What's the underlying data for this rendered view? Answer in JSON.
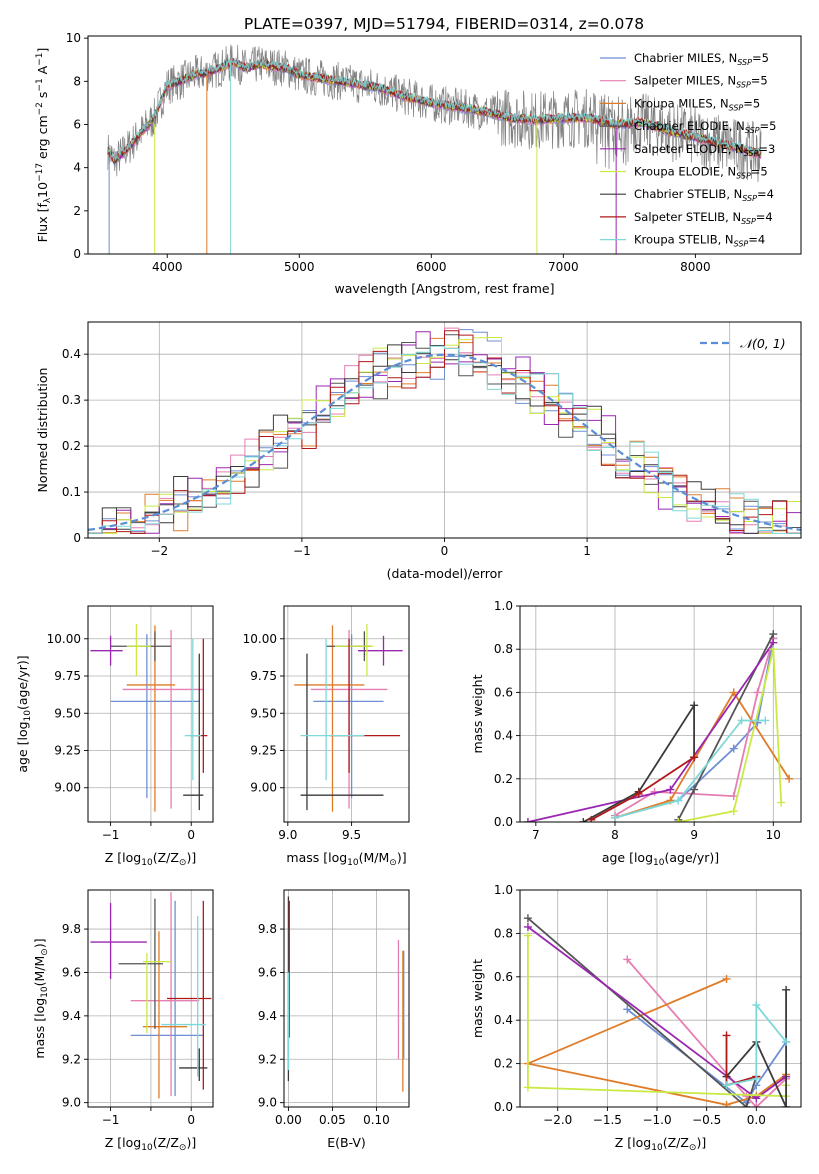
{
  "title": "PLATE=0397, MJD=51794, FIBERID=0314, z=0.078",
  "colors": [
    "#6e8fd4",
    "#e57fb3",
    "#e07b28",
    "#555555",
    "#9a27b0",
    "#c9ea45",
    "#3a3a3a",
    "#b01818",
    "#7fd8d8"
  ],
  "models": [
    {
      "label": "Chabrier MILES, N",
      "sub": "SSP",
      "tail": "=5"
    },
    {
      "label": "Salpeter MILES, N",
      "sub": "SSP",
      "tail": "=5"
    },
    {
      "label": "Kroupa MILES, N",
      "sub": "SSP",
      "tail": "=5"
    },
    {
      "label": "Chabrier ELODIE, N",
      "sub": "SSP",
      "tail": "=5"
    },
    {
      "label": "Salpeter ELODIE, N",
      "sub": "SSP",
      "tail": "=3"
    },
    {
      "label": "Kroupa ELODIE, N",
      "sub": "SSP",
      "tail": "=5"
    },
    {
      "label": "Chabrier STELIB, N",
      "sub": "SSP",
      "tail": "=4"
    },
    {
      "label": "Salpeter STELIB, N",
      "sub": "SSP",
      "tail": "=4"
    },
    {
      "label": "Kroupa STELIB, N",
      "sub": "SSP",
      "tail": "=4"
    }
  ],
  "chart_data": [
    {
      "type": "line",
      "id": "spectrum",
      "xlabel": "wavelength [Angstrom, rest frame]",
      "ylabel_parts": [
        "Flux [f",
        "λ",
        "10",
        "−17",
        " erg cm",
        "−2",
        " s",
        "−1",
        " A",
        "−1",
        "]"
      ],
      "xlim": [
        3400,
        8800
      ],
      "ylim": [
        0,
        10.1
      ],
      "xticks": [
        4000,
        5000,
        6000,
        7000,
        8000
      ],
      "yticks": [
        0,
        2,
        4,
        6,
        8,
        10
      ],
      "continuum": {
        "x": [
          3550,
          3600,
          3700,
          3800,
          3900,
          4000,
          4100,
          4200,
          4300,
          4400,
          4500,
          4600,
          4700,
          4800,
          4900,
          5000,
          5200,
          5400,
          5600,
          5800,
          6000,
          6200,
          6400,
          6600,
          6800,
          7000,
          7200,
          7400,
          7600,
          7800,
          8000,
          8200,
          8400,
          8500
        ],
        "y": [
          4.8,
          4.3,
          4.9,
          5.6,
          6.3,
          7.8,
          8.0,
          8.3,
          8.4,
          8.6,
          8.9,
          8.6,
          8.8,
          8.7,
          8.6,
          8.3,
          8.1,
          7.9,
          7.7,
          7.3,
          7.0,
          6.8,
          6.6,
          6.3,
          6.2,
          6.3,
          6.3,
          6.0,
          6.1,
          5.7,
          5.4,
          5.1,
          4.8,
          4.6
        ]
      },
      "legend": "top-right"
    },
    {
      "type": "histogram",
      "id": "residuals",
      "xlabel": "(data-model)/error",
      "ylabel": "Normed distribution",
      "xlim": [
        -2.5,
        2.5
      ],
      "ylim": [
        0,
        0.47
      ],
      "xticks": [
        -2,
        -1,
        0,
        1,
        2
      ],
      "yticks": [
        0,
        0.1,
        0.2,
        0.3,
        0.4
      ],
      "bin_width": 0.1,
      "gaussian_label": "𝒩(0, 1)",
      "legend": "top-right",
      "grid": true
    },
    {
      "type": "errorbar",
      "id": "age-vs-Z",
      "xlabel_parts": [
        "Z [log",
        "10",
        "(Z/Z",
        "⊙",
        ")]"
      ],
      "ylabel_parts": [
        "age  [log",
        "10",
        "(age/yr)]"
      ],
      "xlim": [
        -1.28,
        0.27
      ],
      "ylim": [
        8.77,
        10.22
      ],
      "xticks": [
        -1,
        -0.5,
        0
      ],
      "xticklabels": [
        "−1",
        "",
        "0"
      ],
      "yticks": [
        9.0,
        9.25,
        9.5,
        9.75,
        10.0
      ],
      "yticklabels": [
        "9.00",
        "9.25",
        "9.50",
        "9.75",
        "10.00"
      ],
      "points": [
        {
          "x": -0.55,
          "xerr": [
            0.45,
            0.65
          ],
          "y": 9.58,
          "yerr": [
            0.65,
            0.45
          ],
          "c": 0
        },
        {
          "x": -0.25,
          "xerr": [
            0.6,
            0.4
          ],
          "y": 9.66,
          "yerr": [
            0.8,
            0.4
          ],
          "c": 1
        },
        {
          "x": -0.45,
          "xerr": [
            0.35,
            0.25
          ],
          "y": 9.69,
          "yerr": [
            0.85,
            0.4
          ],
          "c": 2
        },
        {
          "x": -0.45,
          "xerr": [
            0.55,
            0.2
          ],
          "y": 9.95,
          "yerr": [
            0.1,
            0.1
          ],
          "c": 3
        },
        {
          "x": -1.0,
          "xerr": [
            0.25,
            0.15
          ],
          "y": 9.92,
          "yerr": [
            0.1,
            0.1
          ],
          "c": 4
        },
        {
          "x": -0.68,
          "xerr": [
            0.12,
            0.18
          ],
          "y": 9.95,
          "yerr": [
            0.2,
            0.15
          ],
          "c": 5
        },
        {
          "x": 0.1,
          "xerr": [
            0.2,
            0.05
          ],
          "y": 8.95,
          "yerr": [
            0.1,
            0.95
          ],
          "c": 6
        },
        {
          "x": 0.15,
          "xerr": [
            0.15,
            0.05
          ],
          "y": 9.35,
          "yerr": [
            0.25,
            0.65
          ],
          "c": 7
        },
        {
          "x": 0.02,
          "xerr": [
            0.1,
            0.1
          ],
          "y": 9.35,
          "yerr": [
            0.3,
            0.65
          ],
          "c": 8
        }
      ]
    },
    {
      "type": "errorbar",
      "id": "age-vs-mass",
      "xlabel_parts": [
        "mass [log",
        "10",
        "(M/M",
        "⊙",
        ")]"
      ],
      "xlim": [
        8.97,
        9.95
      ],
      "ylim": [
        8.77,
        10.22
      ],
      "xticks": [
        9.0,
        9.5
      ],
      "xticklabels": [
        "9.0",
        "9.5"
      ],
      "yticks": [
        9.0,
        9.25,
        9.5,
        9.75,
        10.0
      ],
      "yticklabels": [
        "9.00",
        "9.25",
        "9.50",
        "9.75",
        "10.00"
      ],
      "points": [
        {
          "x": 9.5,
          "xerr": [
            0.3,
            0.25
          ],
          "y": 9.58,
          "yerr": [
            0.65,
            0.45
          ],
          "c": 0
        },
        {
          "x": 9.48,
          "xerr": [
            0.3,
            0.3
          ],
          "y": 9.66,
          "yerr": [
            0.8,
            0.4
          ],
          "c": 1
        },
        {
          "x": 9.35,
          "xerr": [
            0.3,
            0.25
          ],
          "y": 9.69,
          "yerr": [
            0.85,
            0.4
          ],
          "c": 2
        },
        {
          "x": 9.6,
          "xerr": [
            0.3,
            0.05
          ],
          "y": 9.95,
          "yerr": [
            0.1,
            0.1
          ],
          "c": 3
        },
        {
          "x": 9.75,
          "xerr": [
            0.2,
            0.15
          ],
          "y": 9.92,
          "yerr": [
            0.1,
            0.1
          ],
          "c": 4
        },
        {
          "x": 9.62,
          "xerr": [
            0.25,
            0.05
          ],
          "y": 9.95,
          "yerr": [
            0.2,
            0.15
          ],
          "c": 5
        },
        {
          "x": 9.15,
          "xerr": [
            0.05,
            0.6
          ],
          "y": 8.95,
          "yerr": [
            0.1,
            0.95
          ],
          "c": 6
        },
        {
          "x": 9.48,
          "xerr": [
            0.15,
            0.4
          ],
          "y": 9.35,
          "yerr": [
            0.25,
            0.65
          ],
          "c": 7
        },
        {
          "x": 9.3,
          "xerr": [
            0.2,
            0.3
          ],
          "y": 9.35,
          "yerr": [
            0.3,
            0.65
          ],
          "c": 8
        }
      ]
    },
    {
      "type": "line",
      "id": "mass-weight-vs-age",
      "xlabel_parts": [
        "age  [log",
        "10",
        "(age/yr)]"
      ],
      "ylabel": "mass weight",
      "xlim": [
        6.8,
        10.35
      ],
      "ylim": [
        0,
        1.0
      ],
      "xticks": [
        7,
        8,
        9,
        10
      ],
      "yticks": [
        0,
        0.2,
        0.4,
        0.6,
        0.8,
        1.0
      ],
      "yticklabels": [
        "0.0",
        "0.2",
        "0.4",
        "0.6",
        "0.8",
        "1.0"
      ],
      "grid": true,
      "series": [
        {
          "c": 0,
          "x": [
            8.0,
            8.8,
            9.5,
            9.8,
            10.0
          ],
          "y": [
            0.02,
            0.1,
            0.34,
            0.46,
            0.85
          ]
        },
        {
          "c": 1,
          "x": [
            8.0,
            8.5,
            9.5,
            9.8,
            10.0
          ],
          "y": [
            0.03,
            0.14,
            0.12,
            0.6,
            0.85
          ]
        },
        {
          "c": 2,
          "x": [
            8.0,
            8.7,
            9.5,
            10.2
          ],
          "y": [
            0.02,
            0.1,
            0.6,
            0.2
          ]
        },
        {
          "c": 3,
          "x": [
            8.8,
            9.0,
            10.0
          ],
          "y": [
            0.01,
            0.15,
            0.87
          ]
        },
        {
          "c": 4,
          "x": [
            6.9,
            8.7,
            10.0
          ],
          "y": [
            0.0,
            0.15,
            0.83
          ]
        },
        {
          "c": 5,
          "x": [
            8.8,
            9.5,
            10.0,
            10.1
          ],
          "y": [
            0.0,
            0.05,
            0.8,
            0.09
          ]
        },
        {
          "c": 6,
          "x": [
            7.6,
            8.3,
            9.0,
            9.0
          ],
          "y": [
            0.0,
            0.14,
            0.54,
            0.3
          ]
        },
        {
          "c": 7,
          "x": [
            7.7,
            8.3,
            9.0
          ],
          "y": [
            0.01,
            0.13,
            0.3
          ]
        },
        {
          "c": 8,
          "x": [
            8.0,
            8.8,
            9.6,
            9.9
          ],
          "y": [
            0.02,
            0.1,
            0.47,
            0.47
          ]
        }
      ]
    },
    {
      "type": "errorbar",
      "id": "mass-vs-Z",
      "xlabel_parts": [
        "Z [log",
        "10",
        "(Z/Z",
        "⊙",
        ")]"
      ],
      "ylabel_parts": [
        "mass [log",
        "10",
        "(M/M",
        "⊙",
        ")]"
      ],
      "xlim": [
        -1.28,
        0.27
      ],
      "ylim": [
        8.98,
        9.98
      ],
      "xticks": [
        -1,
        -0.5,
        0
      ],
      "xticklabels": [
        "−1",
        "",
        "0"
      ],
      "yticks": [
        9.0,
        9.2,
        9.4,
        9.6,
        9.8
      ],
      "yticklabels": [
        "9.0",
        "9.2",
        "9.4",
        "9.6",
        "9.8"
      ],
      "points": [
        {
          "x": -0.2,
          "xerr": [
            0.55,
            0.35
          ],
          "y": 9.31,
          "yerr": [
            0.28,
            0.62
          ],
          "c": 0
        },
        {
          "x": -0.25,
          "xerr": [
            0.5,
            0.35
          ],
          "y": 9.47,
          "yerr": [
            0.44,
            0.5
          ],
          "c": 1
        },
        {
          "x": -0.4,
          "xerr": [
            0.2,
            0.35
          ],
          "y": 9.35,
          "yerr": [
            0.33,
            0.44
          ],
          "c": 2
        },
        {
          "x": -0.45,
          "xerr": [
            0.45,
            0.1
          ],
          "y": 9.64,
          "yerr": [
            0.3,
            0.3
          ],
          "c": 3
        },
        {
          "x": -1.0,
          "xerr": [
            0.25,
            0.45
          ],
          "y": 9.74,
          "yerr": [
            0.17,
            0.18
          ],
          "c": 4
        },
        {
          "x": -0.55,
          "xerr": [
            0.05,
            0.3
          ],
          "y": 9.65,
          "yerr": [
            0.33,
            0.04
          ],
          "c": 5
        },
        {
          "x": 0.1,
          "xerr": [
            0.25,
            0.1
          ],
          "y": 9.16,
          "yerr": [
            0.06,
            0.09
          ],
          "c": 6
        },
        {
          "x": 0.15,
          "xerr": [
            0.45,
            0.1
          ],
          "y": 9.48,
          "yerr": [
            0.42,
            0.45
          ],
          "c": 7
        },
        {
          "x": 0.08,
          "xerr": [
            0.45,
            0.1
          ],
          "y": 9.36,
          "yerr": [
            0.24,
            0.5
          ],
          "c": 8
        }
      ]
    },
    {
      "type": "errorbar",
      "id": "mass-vs-EBV",
      "xlabel": "E(B-V)",
      "xlim": [
        -0.005,
        0.137
      ],
      "ylim": [
        8.98,
        9.98
      ],
      "xticks": [
        0,
        0.05,
        0.1
      ],
      "xticklabels": [
        "0.00",
        "0.05",
        "0.10"
      ],
      "yticks": [
        9.0,
        9.2,
        9.4,
        9.6,
        9.8
      ],
      "yticklabels": [
        "9.0",
        "9.2",
        "9.4",
        "9.6",
        "9.8"
      ],
      "points": [
        {
          "x": 0.0,
          "y": 9.55,
          "yerr": [
            0.45,
            0.4
          ],
          "c": 6
        },
        {
          "x": 0.001,
          "y": 9.75,
          "yerr": [
            0.15,
            0.18
          ],
          "c": 7
        },
        {
          "x": 0.001,
          "y": 9.5,
          "yerr": [
            0.2,
            0.3
          ],
          "c": 3
        },
        {
          "x": 0.0,
          "y": 9.4,
          "yerr": [
            0.25,
            0.2
          ],
          "c": 8
        },
        {
          "x": 0.125,
          "y": 9.45,
          "yerr": [
            0.25,
            0.3
          ],
          "c": 1
        },
        {
          "x": 0.13,
          "y": 9.35,
          "yerr": [
            0.3,
            0.35
          ],
          "c": 2
        },
        {
          "x": 0.131,
          "y": 9.5,
          "yerr": [
            0.3,
            0.2
          ],
          "c": 0
        }
      ]
    },
    {
      "type": "line",
      "id": "mass-weight-vs-Z",
      "xlabel_parts": [
        "Z [log",
        "10",
        "(Z/Z",
        "⊙",
        ")]"
      ],
      "ylabel": "mass weight",
      "xlim": [
        -2.38,
        0.45
      ],
      "ylim": [
        0,
        1.0
      ],
      "xticks": [
        -2.0,
        -1.5,
        -1.0,
        -0.5,
        0.0
      ],
      "xticklabels": [
        "−2.0",
        "−1.5",
        "−1.0",
        "−0.5",
        "0.0"
      ],
      "yticks": [
        0,
        0.2,
        0.4,
        0.6,
        0.8,
        1.0
      ],
      "yticklabels": [
        "0.0",
        "0.2",
        "0.4",
        "0.6",
        "0.8",
        "1.0"
      ],
      "grid": true,
      "series": [
        {
          "c": 0,
          "x": [
            -1.3,
            -0.1,
            0.0,
            0.3
          ],
          "y": [
            0.45,
            0.02,
            0.1,
            0.3
          ]
        },
        {
          "c": 1,
          "x": [
            -1.3,
            -0.1,
            0.0,
            0.3
          ],
          "y": [
            0.68,
            0.05,
            0.0,
            0.13
          ]
        },
        {
          "c": 2,
          "x": [
            -0.3,
            -2.3,
            -0.3,
            0.0,
            0.3
          ],
          "y": [
            0.59,
            0.2,
            0.01,
            0.05,
            0.15
          ]
        },
        {
          "c": 3,
          "x": [
            -2.3,
            -0.1,
            0.0
          ],
          "y": [
            0.87,
            0.0,
            0.14
          ]
        },
        {
          "c": 4,
          "x": [
            -2.3,
            0.0,
            0.3
          ],
          "y": [
            0.83,
            0.04,
            0.14
          ]
        },
        {
          "c": 5,
          "x": [
            -2.3,
            -2.3,
            0.3,
            0.3
          ],
          "y": [
            0.79,
            0.09,
            0.05,
            0.1
          ]
        },
        {
          "c": 6,
          "x": [
            -0.3,
            0.0,
            0.3,
            0.3
          ],
          "y": [
            0.14,
            0.3,
            0.0,
            0.54
          ]
        },
        {
          "c": 7,
          "x": [
            -0.3,
            -0.3,
            0.0
          ],
          "y": [
            0.33,
            0.1,
            0.14
          ]
        },
        {
          "c": 8,
          "x": [
            -0.3,
            0.0,
            0.0,
            0.3
          ],
          "y": [
            0.1,
            0.13,
            0.47,
            0.3
          ]
        }
      ]
    }
  ]
}
